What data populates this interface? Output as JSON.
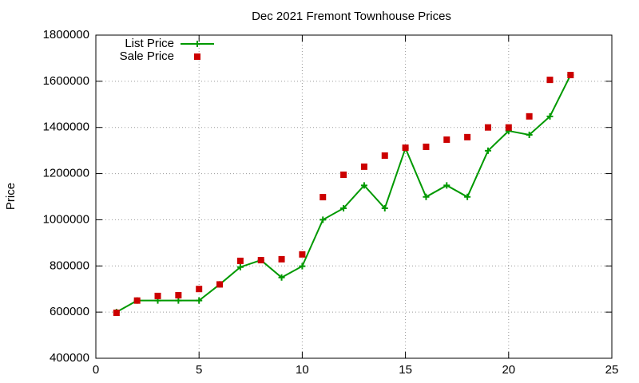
{
  "chart_data": {
    "type": "line",
    "title": "Dec 2021 Fremont Townhouse Prices",
    "y_label": "Price",
    "x": [
      1,
      2,
      3,
      4,
      5,
      6,
      7,
      8,
      9,
      10,
      11,
      12,
      13,
      14,
      15,
      16,
      17,
      18,
      19,
      20,
      21,
      22,
      23
    ],
    "series": [
      {
        "name": "List Price",
        "color": "#009900",
        "line": true,
        "marker": "plus",
        "values": [
          600000,
          650000,
          650000,
          650000,
          650000,
          720000,
          795000,
          825000,
          750000,
          799000,
          1000000,
          1050000,
          1149000,
          1050000,
          1310000,
          1099000,
          1149000,
          1099000,
          1299000,
          1385000,
          1368000,
          1448000,
          1627000
        ]
      },
      {
        "name": "Sale Price",
        "color": "#cc0000",
        "line": false,
        "marker": "square",
        "values": [
          597000,
          650000,
          670000,
          673000,
          700000,
          720000,
          822000,
          825000,
          829000,
          850000,
          1098000,
          1195000,
          1230000,
          1278000,
          1312000,
          1316000,
          1347000,
          1358000,
          1400000,
          1400000,
          1448000,
          1606000,
          1627000
        ]
      }
    ],
    "xlim": [
      0,
      25
    ],
    "xticks": [
      0,
      5,
      10,
      15,
      20,
      25
    ],
    "ylim": [
      400000,
      1800000
    ],
    "yticks": [
      400000,
      600000,
      800000,
      1000000,
      1200000,
      1400000,
      1600000,
      1800000
    ],
    "grid": true,
    "legend": "top-left"
  }
}
